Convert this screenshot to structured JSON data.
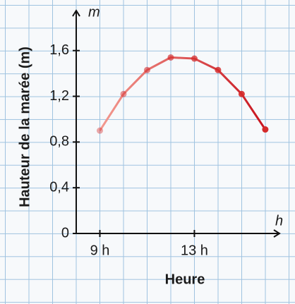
{
  "chart_data": {
    "type": "line",
    "y_label": "Hauteur de la marée (m)",
    "x_label": "Heure",
    "y_unit": "m",
    "x_unit": "h",
    "x": [
      9,
      10,
      11,
      12,
      13,
      14,
      15,
      16
    ],
    "series": [
      {
        "values": [
          0.9,
          1.22,
          1.43,
          1.54,
          1.53,
          1.43,
          1.22,
          0.91
        ],
        "color": "#d42a2a",
        "color_start": "#f39a90",
        "color_end": "#c8141e"
      }
    ],
    "xlim": [
      8,
      16.6
    ],
    "ylim": [
      0,
      1.95
    ],
    "xticks": [
      {
        "value": 9,
        "label": "9 h"
      },
      {
        "value": 13,
        "label": "13 h"
      }
    ],
    "yticks": [
      0,
      {
        "value": 0.4,
        "label": "0,4"
      },
      {
        "value": 0.8,
        "label": "0,8"
      },
      {
        "value": 1.2,
        "label": "1,2"
      },
      {
        "value": 1.6,
        "label": "1,6"
      }
    ]
  }
}
